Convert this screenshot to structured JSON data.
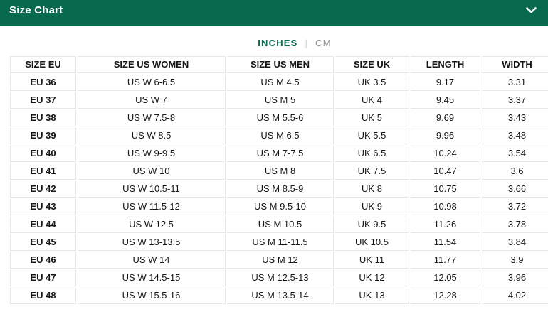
{
  "colors": {
    "header_green": "#07694d",
    "accent_green": "#0a6b4e",
    "inactive_gray": "#8e938f",
    "border_gray": "#e6e6e6",
    "text_dark": "#161616"
  },
  "header": {
    "title": "Size Chart",
    "collapse_icon": "chevron-down-icon"
  },
  "unit_toggle": {
    "options": [
      "INCHES",
      "CM"
    ],
    "selected": "INCHES",
    "divider": "|"
  },
  "table": {
    "columns": [
      "SIZE EU",
      "SIZE US WOMEN",
      "SIZE US MEN",
      "SIZE UK",
      "LENGTH",
      "WIDTH"
    ],
    "rows": [
      [
        "EU 36",
        "US W 6-6.5",
        "US M 4.5",
        "UK 3.5",
        "9.17",
        "3.31"
      ],
      [
        "EU 37",
        "US W 7",
        "US M 5",
        "UK 4",
        "9.45",
        "3.37"
      ],
      [
        "EU 38",
        "US W 7.5-8",
        "US M 5.5-6",
        "UK 5",
        "9.69",
        "3.43"
      ],
      [
        "EU 39",
        "US W 8.5",
        "US M 6.5",
        "UK 5.5",
        "9.96",
        "3.48"
      ],
      [
        "EU 40",
        "US W 9-9.5",
        "US M 7-7.5",
        "UK 6.5",
        "10.24",
        "3.54"
      ],
      [
        "EU 41",
        "US W 10",
        "US M 8",
        "UK 7.5",
        "10.47",
        "3.6"
      ],
      [
        "EU 42",
        "US W 10.5-11",
        "US M 8.5-9",
        "UK 8",
        "10.75",
        "3.66"
      ],
      [
        "EU 43",
        "US W 11.5-12",
        "US M 9.5-10",
        "UK 9",
        "10.98",
        "3.72"
      ],
      [
        "EU 44",
        "US W 12.5",
        "US M 10.5",
        "UK 9.5",
        "11.26",
        "3.78"
      ],
      [
        "EU 45",
        "US W 13-13.5",
        "US M 11-11.5",
        "UK 10.5",
        "11.54",
        "3.84"
      ],
      [
        "EU 46",
        "US W 14",
        "US M 12",
        "UK 11",
        "11.77",
        "3.9"
      ],
      [
        "EU 47",
        "US W 14.5-15",
        "US M 12.5-13",
        "UK 12",
        "12.05",
        "3.96"
      ],
      [
        "EU 48",
        "US W 15.5-16",
        "US M 13.5-14",
        "UK 13",
        "12.28",
        "4.02"
      ]
    ]
  }
}
